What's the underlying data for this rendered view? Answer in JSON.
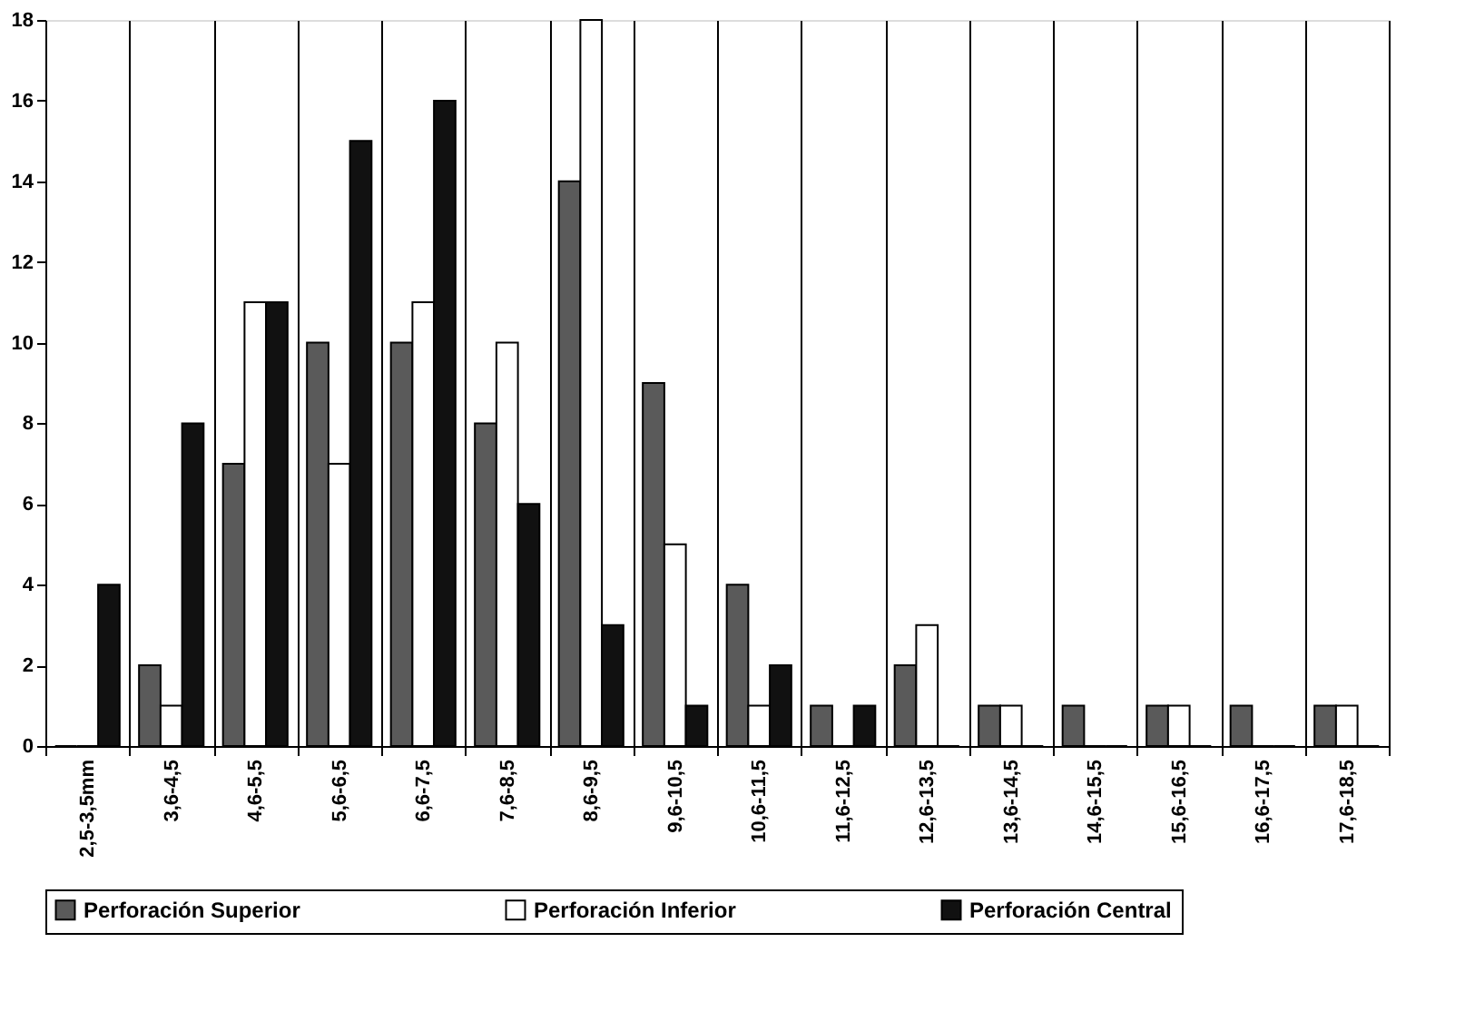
{
  "chart_data": {
    "type": "bar",
    "categories": [
      "2,5-3,5mm",
      "3,6-4,5",
      "4,6-5,5",
      "5,6-6,5",
      "6,6-7,5",
      "7,6-8,5",
      "8,6-9,5",
      "9,6-10,5",
      "10,6-11,5",
      "11,6-12,5",
      "12,6-13,5",
      "13,6-14,5",
      "14,6-15,5",
      "15,6-16,5",
      "16,6-17,5",
      "17,6-18,5"
    ],
    "series": [
      {
        "name": "Perforación Superior",
        "color": "#5a5a5a",
        "values": [
          0,
          2,
          7,
          10,
          10,
          8,
          14,
          9,
          4,
          1,
          2,
          1,
          1,
          1,
          1,
          1
        ]
      },
      {
        "name": "Perforación Inferior",
        "color": "#ffffff",
        "values": [
          0,
          1,
          11,
          7,
          11,
          10,
          18,
          5,
          1,
          0,
          3,
          1,
          0,
          1,
          0,
          1
        ]
      },
      {
        "name": "Perforación Central",
        "color": "#111111",
        "values": [
          4,
          8,
          11,
          15,
          16,
          6,
          3,
          1,
          2,
          1,
          0,
          0,
          0,
          0,
          0,
          0
        ]
      }
    ],
    "ylim": [
      0,
      18
    ],
    "yticks": [
      0,
      2,
      4,
      6,
      8,
      10,
      12,
      14,
      16,
      18
    ],
    "grid": "x",
    "legend": "bottom"
  }
}
